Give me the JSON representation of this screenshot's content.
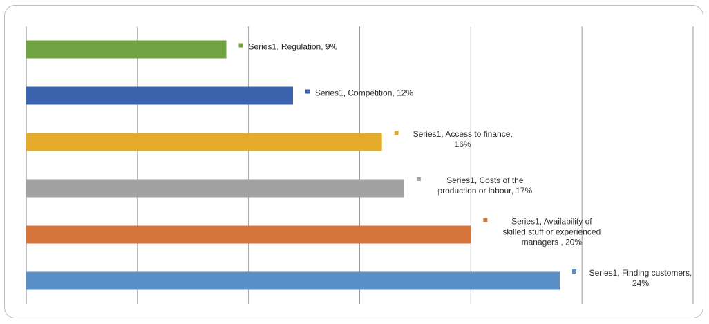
{
  "chart_data": {
    "type": "bar",
    "orientation": "horizontal",
    "xlim": [
      0,
      30
    ],
    "grid": true,
    "legend": "none",
    "bars": [
      {
        "series": "Series1",
        "category": "Finding customers",
        "value": 24,
        "color": "#5b8fc7",
        "label_lines": [
          "Series1, Finding customers,",
          "24%"
        ]
      },
      {
        "series": "Series1",
        "category": "Availability of skilled stuff or experienced managers",
        "value": 20,
        "color": "#d4733a",
        "label_lines": [
          "Series1, Availability of",
          "skilled stuff or experienced",
          "managers , 20%"
        ]
      },
      {
        "series": "Series1",
        "category": "Costs of the production or labour",
        "value": 17,
        "color": "#a2a2a2",
        "label_lines": [
          "Series1, Costs of the",
          "production or labour, 17%"
        ]
      },
      {
        "series": "Series1",
        "category": "Access to finance",
        "value": 16,
        "color": "#e4ab2b",
        "label_lines": [
          "Series1, Access to finance,",
          "16%"
        ]
      },
      {
        "series": "Series1",
        "category": "Competition",
        "value": 12,
        "color": "#3b62ad",
        "label_lines": [
          "Series1, Competition, 12%"
        ]
      },
      {
        "series": "Series1",
        "category": "Regulation",
        "value": 9,
        "color": "#71a343",
        "label_lines": [
          "Series1, Regulation, 9%"
        ]
      }
    ]
  }
}
